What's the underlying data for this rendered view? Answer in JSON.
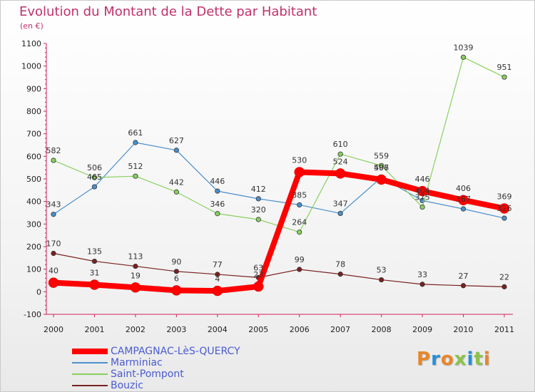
{
  "header": {
    "title": "Evolution du Montant de la Dette par Habitant",
    "subtitle": "(en €)"
  },
  "logo": {
    "text": "Proxiti",
    "letter_colors": [
      "#e8862a",
      "#2a8fd8",
      "#e8862a",
      "#8bc34a",
      "#2a8fd8",
      "#8bc34a",
      "#e8862a"
    ]
  },
  "chart_data": {
    "type": "line",
    "x": [
      "2000",
      "2001",
      "2002",
      "2003",
      "2004",
      "2005",
      "2006",
      "2007",
      "2008",
      "2009",
      "2010",
      "2011"
    ],
    "ylim": [
      -100,
      1100
    ],
    "yticks": [
      -100,
      0,
      100,
      200,
      300,
      400,
      500,
      600,
      700,
      800,
      900,
      1000,
      1100
    ],
    "grid": false,
    "legend_position": "bottom-left",
    "series": [
      {
        "name": "CAMPAGNAC-LèS-QUERCY",
        "color": "#ff0000",
        "values": [
          40,
          31,
          19,
          6,
          4,
          23,
          530,
          524,
          497,
          446,
          406,
          369
        ],
        "labels": [
          "40",
          "31",
          "19",
          "6",
          "4",
          "23",
          "530",
          "524",
          "497",
          "446",
          "406",
          "369"
        ],
        "highlight": true
      },
      {
        "name": "Marminiac",
        "color": "#4a8fcc",
        "values": [
          343,
          465,
          661,
          627,
          446,
          412,
          385,
          347,
          506,
          404,
          367,
          326
        ],
        "labels": [
          "343",
          "465",
          "661",
          "627",
          "446",
          "412",
          "385",
          "347",
          "506",
          "404",
          "367",
          "326"
        ]
      },
      {
        "name": "Saint-Pompont",
        "color": "#88d060",
        "values": [
          582,
          506,
          512,
          442,
          346,
          320,
          264,
          610,
          559,
          375,
          1039,
          951
        ],
        "labels": [
          "582",
          "506",
          "512",
          "442",
          "346",
          "320",
          "264",
          "610",
          "559",
          "375",
          "1039",
          "951"
        ]
      },
      {
        "name": "Bouzic",
        "color": "#7a2020",
        "values": [
          170,
          135,
          113,
          90,
          77,
          63,
          99,
          78,
          53,
          33,
          27,
          22
        ],
        "labels": [
          "170",
          "135",
          "113",
          "90",
          "77",
          "63",
          "99",
          "78",
          "53",
          "33",
          "27",
          "22"
        ]
      }
    ]
  }
}
